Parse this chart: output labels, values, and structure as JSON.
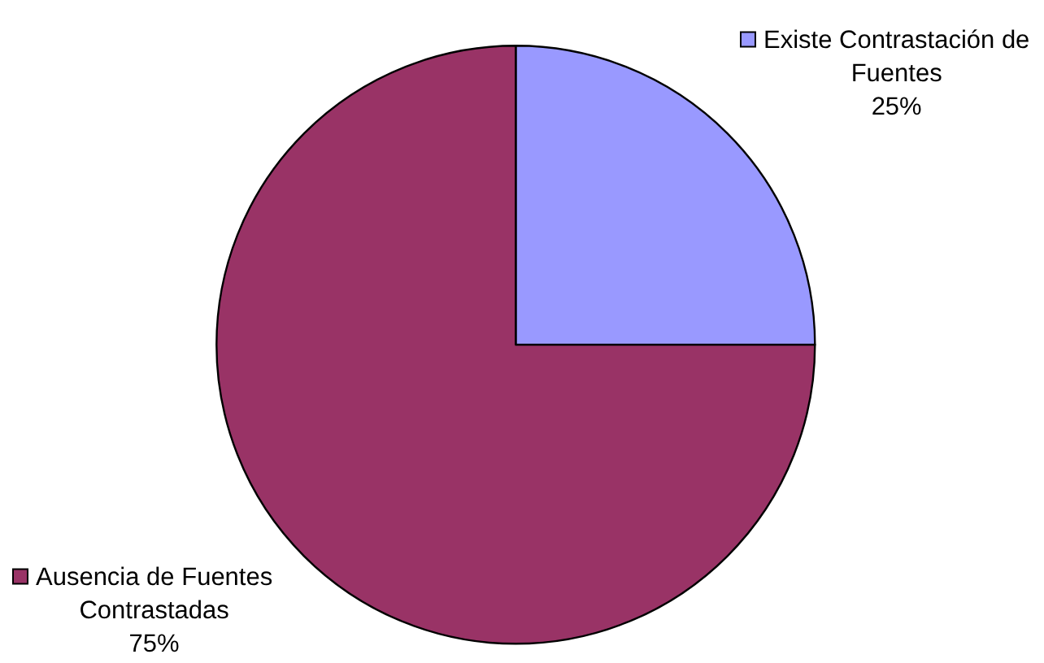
{
  "chart_data": {
    "type": "pie",
    "categories": [
      "Existe Contrastación de Fuentes",
      "Ausencia de Fuentes Contrastadas"
    ],
    "values": [
      25,
      75
    ],
    "colors": [
      "#9999ff",
      "#993366"
    ],
    "value_labels": [
      "25%",
      "75%"
    ],
    "legend": "top right"
  }
}
